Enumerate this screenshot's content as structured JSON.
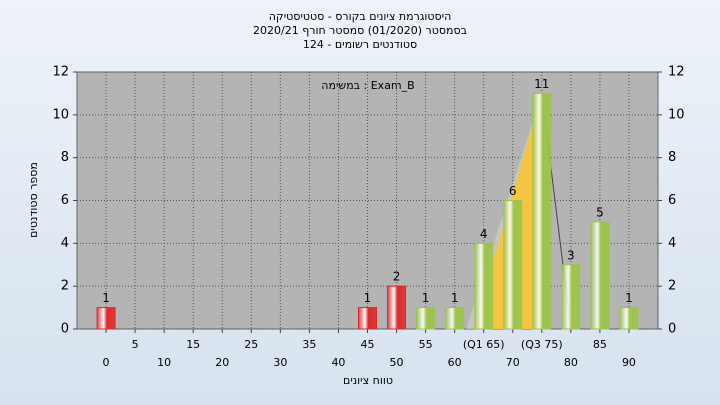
{
  "chart_data": {
    "type": "bar",
    "title_lines": [
      "היסטוגרמת ציונים בקורס - סטטיסטיקה",
      "בסמסטר  (01/2020)  סמסטר חורף 2020/21",
      "סטודנטים רשומים - 124"
    ],
    "annotation": "במשימה : Exam_B",
    "x_label": "טווח ציונים",
    "y_label": "מספר סטודנטים",
    "categories": [
      "0",
      "5",
      "10",
      "15",
      "20",
      "25",
      "30",
      "35",
      "40",
      "45",
      "50",
      "55",
      "60",
      "(Q1 65)",
      "70",
      "(Q3 75)",
      "80",
      "85",
      "90"
    ],
    "values": [
      1,
      0,
      0,
      0,
      0,
      0,
      0,
      0,
      0,
      1,
      2,
      1,
      1,
      4,
      6,
      11,
      3,
      5,
      1
    ],
    "bar_colors": [
      "#e02828",
      "#e02828",
      "#e02828",
      "#e02828",
      "#e02828",
      "#e02828",
      "#e02828",
      "#e02828",
      "#e02828",
      "#e02828",
      "#e02828",
      "#9cc449",
      "#9cc449",
      "#9cc449",
      "#9cc449",
      "#9cc449",
      "#9cc449",
      "#9cc449",
      "#9cc449"
    ],
    "quartile_color": "#f5c542",
    "ylim": [
      0,
      12
    ],
    "yticks": [
      0,
      2,
      4,
      6,
      8,
      10,
      12
    ],
    "grid": true
  }
}
